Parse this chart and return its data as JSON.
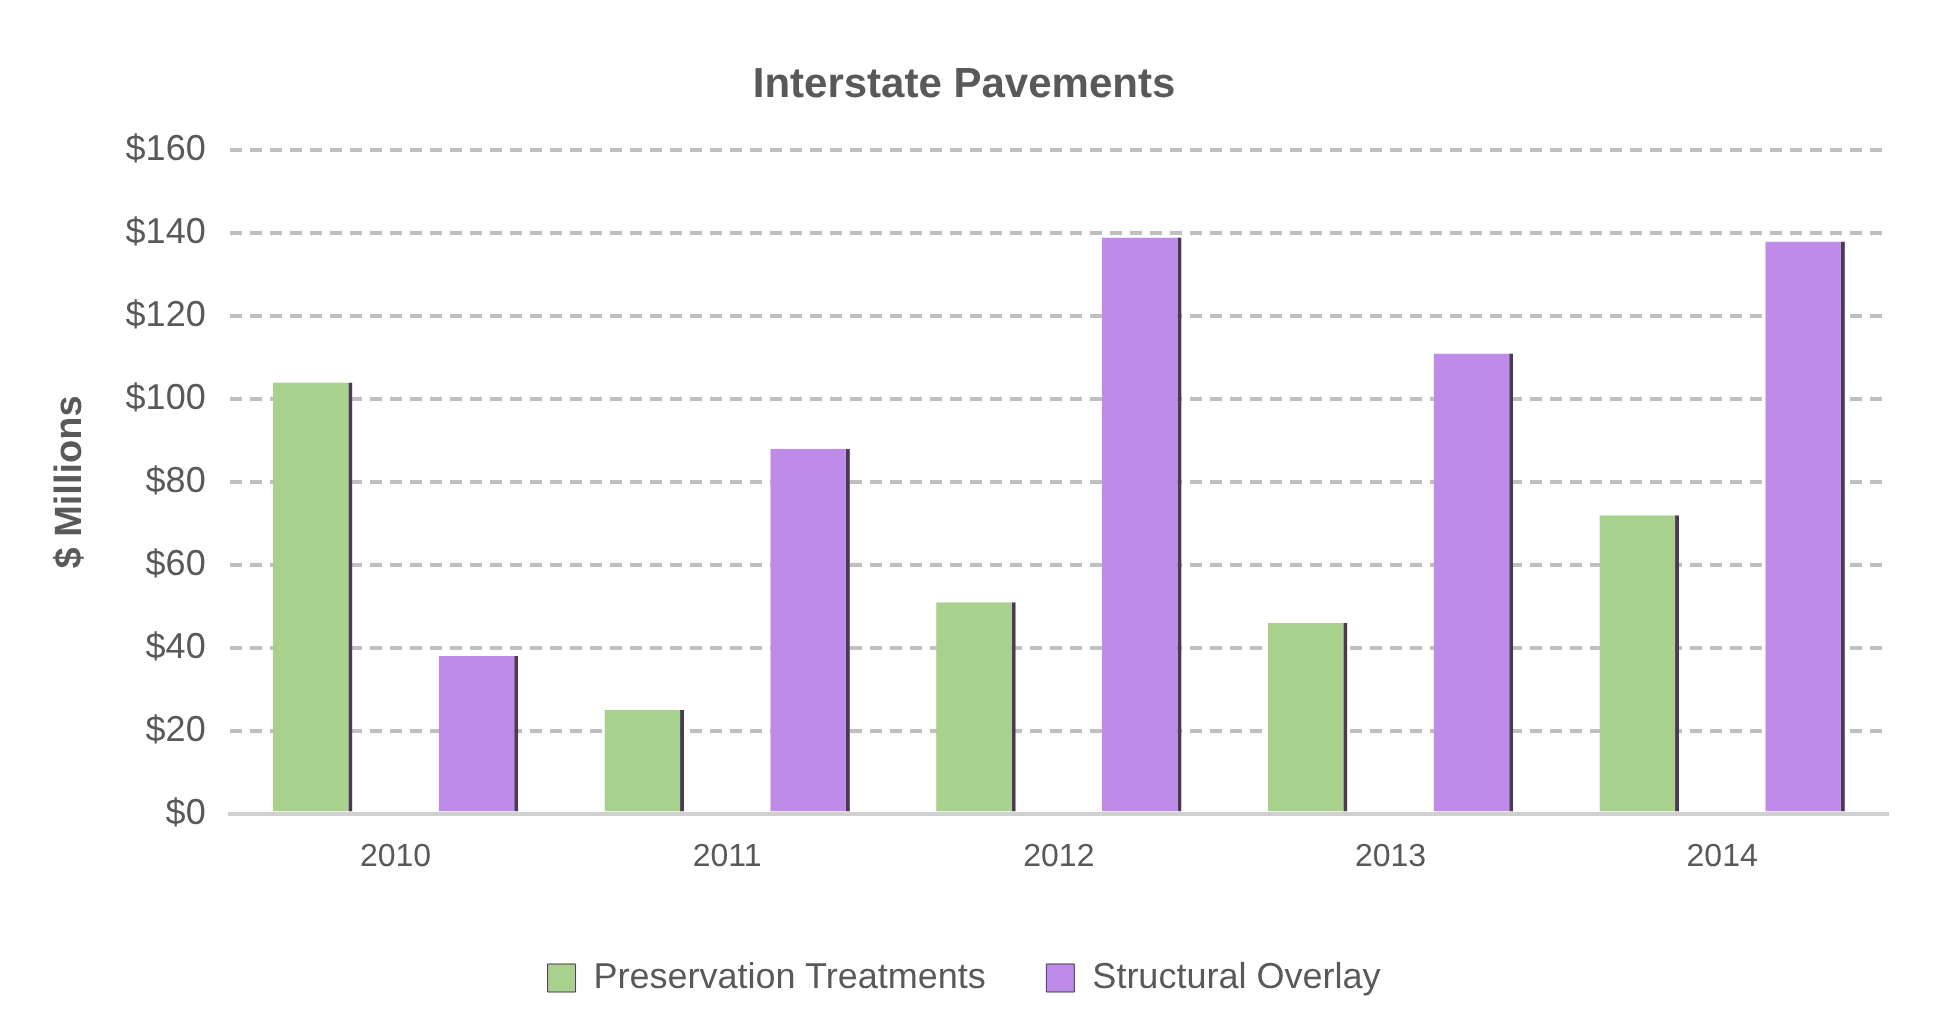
{
  "chart_data": {
    "type": "bar",
    "title": "Interstate Pavements",
    "ylabel": "$ Millions",
    "categories": [
      "2010",
      "2011",
      "2012",
      "2013",
      "2014"
    ],
    "series": [
      {
        "name": "Preservation Treatments",
        "color": "#a9d18e",
        "values": [
          104,
          25,
          51,
          46,
          72
        ]
      },
      {
        "name": "Structural Overlay",
        "color": "#bf8be8",
        "values": [
          38,
          88,
          139,
          111,
          138
        ]
      }
    ],
    "ylim": [
      0,
      160
    ],
    "yticks": [
      {
        "value": 0,
        "label": "$0"
      },
      {
        "value": 20,
        "label": "$20"
      },
      {
        "value": 40,
        "label": "$40"
      },
      {
        "value": 60,
        "label": "$60"
      },
      {
        "value": 80,
        "label": "$80"
      },
      {
        "value": 100,
        "label": "$100"
      },
      {
        "value": 120,
        "label": "$120"
      },
      {
        "value": 140,
        "label": "$140"
      },
      {
        "value": 160,
        "label": "$160"
      }
    ],
    "grid": "y",
    "legend": "bottom"
  }
}
